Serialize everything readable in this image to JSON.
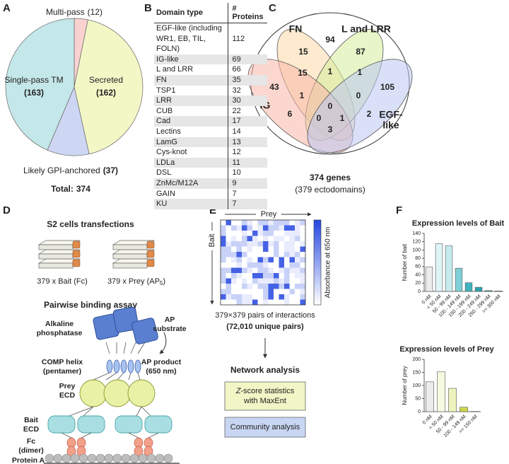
{
  "panel_labels": [
    "A",
    "B",
    "C",
    "D",
    "E",
    "F"
  ],
  "chart_data": [
    {
      "type": "pie",
      "categories": [
        "Multi-pass",
        "Secreted",
        "Likely GPI-anchored",
        "Single-pass TM"
      ],
      "values": [
        12,
        162,
        37,
        163
      ],
      "value_labels": [
        "(12)",
        "(162)",
        "(37)",
        "(163)"
      ],
      "colors": [
        "#f9d2d0",
        "#f3f7c6",
        "#cdd6f3",
        "#c4e7e9"
      ],
      "total_label": "Total:",
      "total": 374
    },
    {
      "type": "bar",
      "title": "Expression levels of Bait",
      "y_label": "Number of bait",
      "categories": [
        "0 nM",
        "< 50 nM",
        "50 - 99 nM",
        "100 - 149 nM",
        "150 - 199 nM",
        "200 - 249 nM",
        "250 - 299 nM",
        ">= 300 nM"
      ],
      "values": [
        59,
        115,
        110,
        56,
        21,
        10,
        2,
        1
      ],
      "colors": [
        "#ececec",
        "#dff4f6",
        "#c6ebee",
        "#7fd0d6",
        "#3fb3bf",
        "#2fa1ae",
        "#2a93a0",
        "#2a8794"
      ],
      "ylim": [
        0,
        140
      ],
      "yticks": [
        0,
        20,
        40,
        60,
        80,
        100,
        120,
        140
      ]
    },
    {
      "type": "bar",
      "title": "Expression levels of Prey",
      "y_label": "Number of prey",
      "categories": [
        "0 nM",
        "< 50 nM",
        "50 - 99 nM",
        "100 - 149 nM",
        ">= 150 nM"
      ],
      "values": [
        114,
        152,
        89,
        17,
        1
      ],
      "colors": [
        "#ececec",
        "#f8fae0",
        "#eef3bd",
        "#cbd84c",
        "#b4c53a"
      ],
      "ylim": [
        0,
        200
      ],
      "yticks": [
        0,
        50,
        100,
        150,
        200
      ]
    }
  ],
  "table": {
    "header": [
      "Domain type",
      "# Proteins"
    ],
    "rows": [
      [
        "EGF-like (including WR1, EB, TIL, FOLN)",
        112
      ],
      [
        "IG-like",
        69
      ],
      [
        "L and LRR",
        66
      ],
      [
        "FN",
        35
      ],
      [
        "TSP1",
        32
      ],
      [
        "LRR",
        30
      ],
      [
        "CUB",
        22
      ],
      [
        "Cad",
        17
      ],
      [
        "Lectins",
        14
      ],
      [
        "LamG",
        13
      ],
      [
        "Cys-knot",
        12
      ],
      [
        "LDLa",
        11
      ],
      [
        "DSL",
        10
      ],
      [
        "ZnMc/M12A",
        9
      ],
      [
        "GAIN",
        7
      ],
      [
        "KU",
        7
      ]
    ]
  },
  "venn": {
    "sets": [
      {
        "lines": [
          "FN"
        ],
        "color": "#f5a34c",
        "fill": "#fbd9a8"
      },
      {
        "lines": [
          "L and LRR"
        ],
        "color": "#8dc63f",
        "fill": "#d6ec9c"
      },
      {
        "lines": [
          "IG"
        ],
        "color": "#f0665a",
        "fill": "#f7b7a8"
      },
      {
        "lines": [
          "EGF-",
          "like"
        ],
        "color": "#9da7e0",
        "fill": "#b9c6f0"
      }
    ],
    "counts": [
      15,
      94,
      87,
      15,
      1,
      1,
      43,
      105,
      1,
      0,
      0,
      6,
      0,
      1,
      2,
      3
    ],
    "total": "374 genes",
    "subtitle": "(379 ectodomains)"
  },
  "assay": {
    "title": "S2 cells transfections",
    "bait_plate": "379 x Bait (Fc)",
    "prey_plate": {
      "before": "379 x Prey (AP",
      "sub": "5",
      "after": ")"
    },
    "subtitle": "Pairwise binding assay",
    "labels": [
      {
        "lines": [
          "Alkaline",
          "phosphatase"
        ],
        "color": "#2b4f9f"
      },
      {
        "lines": [
          "AP",
          "substrate"
        ],
        "color": "#9ca08c"
      },
      {
        "lines": [
          "AP product",
          "(650 nm)"
        ],
        "color": "#2b4f9f"
      },
      {
        "lines": [
          "COMP helix",
          "(pentamer)"
        ],
        "color": "#4f8be0"
      },
      {
        "lines": [
          "Prey",
          "ECD"
        ],
        "color": "#a8b630"
      },
      {
        "lines": [
          "Bait",
          "ECD"
        ],
        "color": "#2e9aa8"
      },
      {
        "lines": [
          "Fc",
          "(dimer)"
        ],
        "color": "#ef7d4f"
      },
      {
        "lines": [
          "Protein A"
        ],
        "color": "#a8a8a8"
      }
    ]
  },
  "screen": {
    "prey": "Prey",
    "bait": "Bait",
    "colorbar_label": "Absorbance at 650 nm",
    "pairs": "379×379 pairs of interactions",
    "unique": "(72,010 unique pairs)",
    "network": "Network analysis",
    "boxes": [
      {
        "italic": "Z",
        "lines": [
          "-score statistics",
          "with MaxEnt"
        ],
        "color": "#f1f6c6"
      },
      {
        "lines": [
          "Community analysis"
        ],
        "color": "#c9d6f2"
      }
    ]
  }
}
